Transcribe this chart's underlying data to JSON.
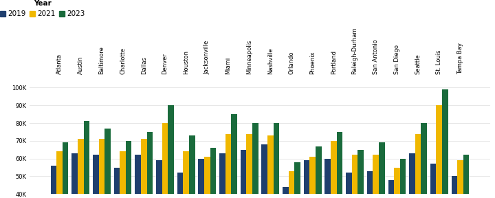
{
  "cities": [
    "Atlanta",
    "Austin",
    "Baltimore",
    "Charlotte",
    "Dallas",
    "Denver",
    "Houston",
    "Jacksonville",
    "Miami",
    "Minneapolis",
    "Nashville",
    "Orlando",
    "Phoenix",
    "Portland",
    "Raleigh-Durham",
    "San Antonio",
    "San Diego",
    "Seattle",
    "St. Louis",
    "Tampa Bay"
  ],
  "data_2019": [
    56000,
    63000,
    62000,
    55000,
    62000,
    59000,
    52000,
    60000,
    63000,
    65000,
    68000,
    44000,
    59000,
    60000,
    52000,
    53000,
    48000,
    63000,
    57000,
    50000
  ],
  "data_2021": [
    64000,
    71000,
    71000,
    64000,
    71000,
    80000,
    64000,
    61000,
    74000,
    74000,
    73000,
    53000,
    61000,
    70000,
    62000,
    62000,
    55000,
    74000,
    90000,
    59000
  ],
  "data_2023": [
    69000,
    81000,
    77000,
    70000,
    75000,
    90000,
    73000,
    66000,
    85000,
    80000,
    80000,
    58000,
    67000,
    75000,
    65000,
    69000,
    60000,
    80000,
    99000,
    62000
  ],
  "color_2019": "#1f3f6e",
  "color_2021": "#f0b800",
  "color_2023": "#1a6b3c",
  "ylim_min": 40000,
  "ylim_max": 107000,
  "ytick_values": [
    40000,
    50000,
    60000,
    70000,
    80000,
    90000,
    100000
  ],
  "ytick_labels": [
    "40K",
    "50K",
    "60K",
    "70K",
    "80K",
    "90K",
    "100K"
  ],
  "legend_title": "Year",
  "legend_labels": [
    "2019",
    "2021",
    "2023"
  ],
  "bar_width": 0.28,
  "figure_width": 7.2,
  "figure_height": 2.88,
  "dpi": 100,
  "background_color": "#ffffff",
  "grid_color": "#dddddd",
  "tick_label_fontsize": 6.0,
  "legend_fontsize": 7.5
}
